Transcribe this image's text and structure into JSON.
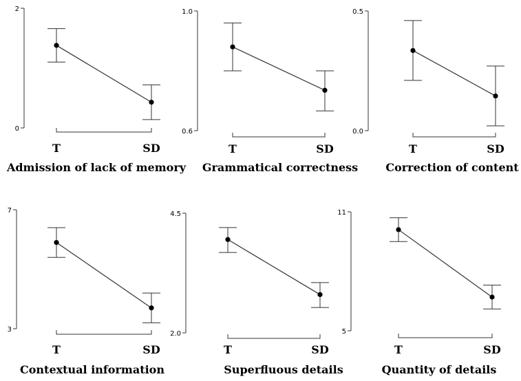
{
  "colors": {
    "line": "#333333",
    "point": "#000000",
    "background": "#ffffff"
  },
  "chart_data": [
    {
      "type": "line",
      "title": "Admission of lack of memory",
      "categories": [
        "T",
        "SD"
      ],
      "values": [
        1.38,
        0.43
      ],
      "error_low": [
        1.1,
        0.14
      ],
      "error_high": [
        1.66,
        0.72
      ],
      "ylim": [
        0,
        2
      ],
      "yticks": [
        0,
        2
      ],
      "ytick_labels": [
        "0",
        "2"
      ]
    },
    {
      "type": "line",
      "title": "Grammatical correctness",
      "categories": [
        "T",
        "SD"
      ],
      "values": [
        0.88,
        0.735
      ],
      "error_low": [
        0.8,
        0.666
      ],
      "error_high": [
        0.96,
        0.8
      ],
      "ylim": [
        0.6,
        1.0
      ],
      "yticks": [
        0.6,
        1.0
      ],
      "ytick_labels": [
        "0.6",
        "1.0"
      ]
    },
    {
      "type": "line",
      "title": "Correction of content",
      "categories": [
        "T",
        "SD"
      ],
      "values": [
        0.335,
        0.145
      ],
      "error_low": [
        0.21,
        0.02
      ],
      "error_high": [
        0.46,
        0.27
      ],
      "ylim": [
        0.0,
        0.5
      ],
      "yticks": [
        0.0,
        0.5
      ],
      "ytick_labels": [
        "0.0",
        "0.5"
      ]
    },
    {
      "type": "line",
      "title": "Contextual information",
      "categories": [
        "T",
        "SD"
      ],
      "values": [
        5.9,
        3.7
      ],
      "error_low": [
        5.4,
        3.2
      ],
      "error_high": [
        6.4,
        4.2
      ],
      "ylim": [
        3,
        7
      ],
      "yticks": [
        3,
        7
      ],
      "ytick_labels": [
        "3",
        "7"
      ]
    },
    {
      "type": "line",
      "title": "Superfluous details",
      "categories": [
        "T",
        "SD"
      ],
      "values": [
        3.95,
        2.8
      ],
      "error_low": [
        3.68,
        2.53
      ],
      "error_high": [
        4.2,
        3.05
      ],
      "ylim": [
        2.0,
        4.5
      ],
      "yticks": [
        2.0,
        4.5
      ],
      "ytick_labels": [
        "2.0",
        "4.5"
      ]
    },
    {
      "type": "line",
      "title": "Quantity of details",
      "categories": [
        "T",
        "SD"
      ],
      "values": [
        10.1,
        6.7
      ],
      "error_low": [
        9.5,
        6.1
      ],
      "error_high": [
        10.7,
        7.3
      ],
      "ylim": [
        5,
        11
      ],
      "yticks": [
        5,
        11
      ],
      "ytick_labels": [
        "5",
        "11"
      ]
    }
  ]
}
